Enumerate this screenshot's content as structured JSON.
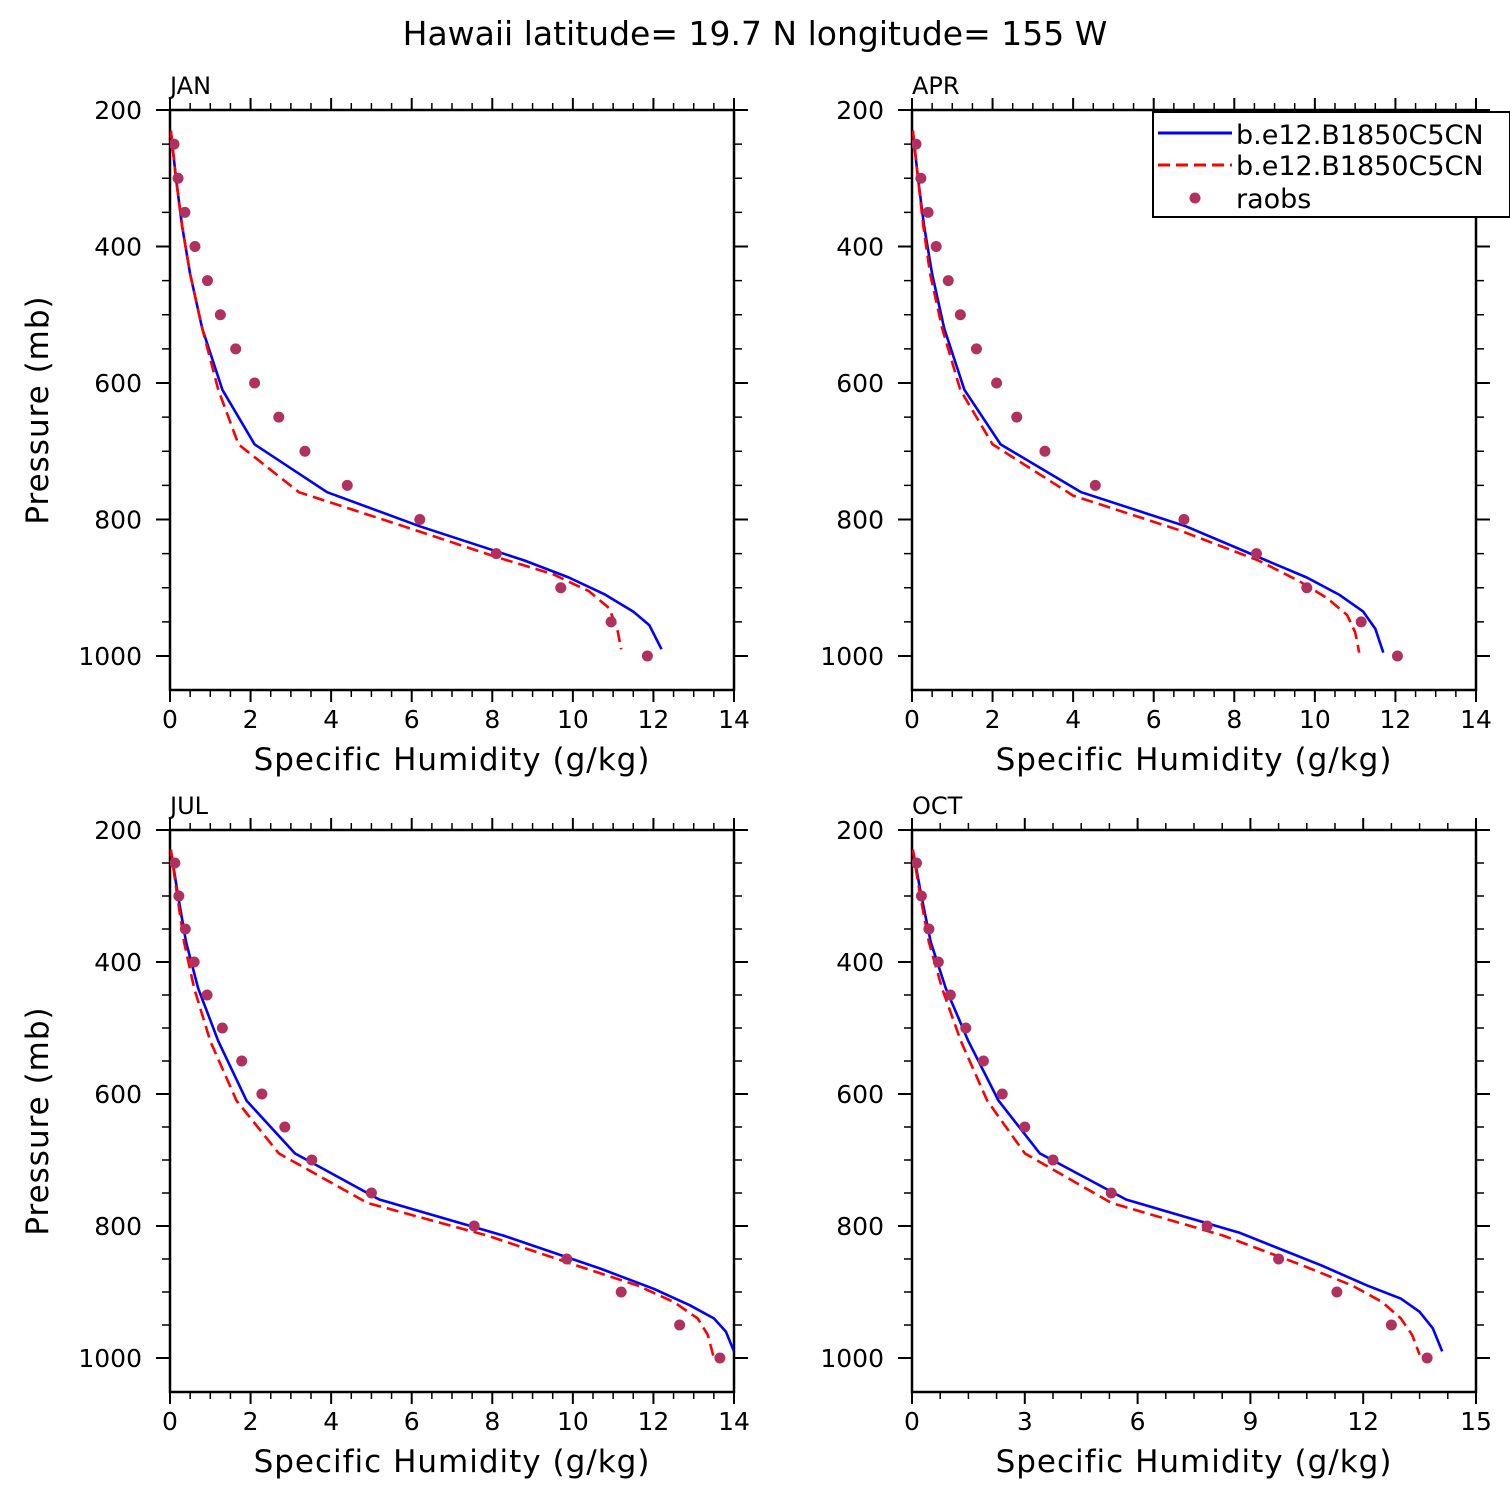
{
  "title": "Hawaii  latitude= 19.7 N longitude= 155 W",
  "legend": {
    "entries": [
      {
        "label": "b.e12.B1850C5CN",
        "color": "#0000ff",
        "style": "solid"
      },
      {
        "label": "b.e12.B1850C5CN",
        "color": "#ff0000",
        "style": "dashed"
      },
      {
        "label": "raobs",
        "color": "#b03060",
        "style": "dots"
      }
    ]
  },
  "colors": {
    "model_solid": "#0000ff",
    "model_dashed": "#ff0000",
    "raobs": "#b03060"
  },
  "chart_data": [
    {
      "type": "line",
      "panel": "JAN",
      "xlabel": "Specific Humidity (g/kg)",
      "ylabel": "Pressure (mb)",
      "xlim": [
        0,
        14
      ],
      "ylim": [
        1000,
        200
      ],
      "xticks": [
        0,
        2,
        4,
        6,
        8,
        10,
        12,
        14
      ],
      "yticks": [
        200,
        400,
        600,
        800,
        1000
      ],
      "series": [
        {
          "name": "b.e12.B1850C5CN",
          "x": [
            0.02,
            0.15,
            0.3,
            0.5,
            0.8,
            1.3,
            2.1,
            3.9,
            6.2,
            8.8,
            9.9,
            10.8,
            11.5,
            11.9,
            12.2
          ],
          "y": [
            230,
            300,
            370,
            440,
            520,
            610,
            690,
            760,
            810,
            860,
            885,
            910,
            935,
            955,
            990
          ]
        },
        {
          "name": "b.e12.B1850C5CN",
          "x": [
            0.02,
            0.15,
            0.3,
            0.5,
            0.8,
            1.2,
            1.7,
            3.2,
            5.8,
            8.1,
            9.5,
            10.4,
            10.9,
            11.1,
            11.2
          ],
          "y": [
            230,
            300,
            370,
            440,
            520,
            610,
            690,
            760,
            810,
            855,
            880,
            905,
            930,
            960,
            990
          ]
        },
        {
          "name": "raobs",
          "x": [
            0.1,
            0.2,
            0.37,
            0.62,
            0.93,
            1.25,
            1.63,
            2.1,
            2.7,
            3.35,
            4.4,
            6.2,
            8.1,
            9.7,
            10.95,
            11.85
          ],
          "y": [
            250,
            300,
            350,
            400,
            450,
            500,
            550,
            600,
            650,
            700,
            750,
            800,
            850,
            900,
            950,
            1000
          ]
        }
      ]
    },
    {
      "type": "line",
      "panel": "APR",
      "xlabel": "Specific Humidity (g/kg)",
      "ylabel": "",
      "xlim": [
        0,
        14
      ],
      "ylim": [
        1000,
        200
      ],
      "xticks": [
        0,
        2,
        4,
        6,
        8,
        10,
        12,
        14
      ],
      "yticks": [
        200,
        400,
        600,
        800,
        1000
      ],
      "series": [
        {
          "name": "b.e12.B1850C5CN",
          "x": [
            0.02,
            0.15,
            0.3,
            0.5,
            0.8,
            1.3,
            2.2,
            4.2,
            6.8,
            8.8,
            9.8,
            10.6,
            11.2,
            11.5,
            11.7
          ],
          "y": [
            230,
            300,
            370,
            440,
            520,
            610,
            690,
            760,
            810,
            860,
            885,
            910,
            935,
            960,
            995
          ]
        },
        {
          "name": "b.e12.B1850C5CN",
          "x": [
            0.02,
            0.15,
            0.28,
            0.45,
            0.75,
            1.2,
            2.0,
            4.0,
            6.6,
            8.6,
            9.6,
            10.3,
            10.8,
            11.0,
            11.1
          ],
          "y": [
            230,
            300,
            370,
            440,
            520,
            610,
            690,
            765,
            815,
            860,
            890,
            915,
            940,
            965,
            995
          ]
        },
        {
          "name": "raobs",
          "x": [
            0.1,
            0.22,
            0.4,
            0.6,
            0.9,
            1.2,
            1.6,
            2.1,
            2.6,
            3.3,
            4.55,
            6.75,
            8.55,
            9.8,
            11.15,
            12.05
          ],
          "y": [
            250,
            300,
            350,
            400,
            450,
            500,
            550,
            600,
            650,
            700,
            750,
            800,
            850,
            900,
            950,
            1000
          ]
        }
      ]
    },
    {
      "type": "line",
      "panel": "JUL",
      "xlabel": "Specific Humidity (g/kg)",
      "ylabel": "Pressure (mb)",
      "xlim": [
        0,
        14
      ],
      "ylim": [
        1000,
        200
      ],
      "xticks": [
        0,
        2,
        4,
        6,
        8,
        10,
        12,
        14
      ],
      "yticks": [
        200,
        400,
        600,
        800,
        1000
      ],
      "series": [
        {
          "name": "b.e12.B1850C5CN",
          "x": [
            0.02,
            0.2,
            0.4,
            0.7,
            1.2,
            1.9,
            3.1,
            5.2,
            8.3,
            10.7,
            12.0,
            12.9,
            13.5,
            13.8,
            14.0
          ],
          "y": [
            230,
            300,
            370,
            440,
            520,
            610,
            690,
            760,
            815,
            865,
            895,
            920,
            940,
            960,
            990
          ]
        },
        {
          "name": "b.e12.B1850C5CN",
          "x": [
            0.02,
            0.18,
            0.35,
            0.6,
            1.0,
            1.65,
            2.7,
            4.9,
            7.9,
            10.1,
            11.6,
            12.5,
            13.1,
            13.35,
            13.5
          ],
          "y": [
            230,
            300,
            370,
            440,
            520,
            610,
            690,
            765,
            815,
            860,
            890,
            915,
            940,
            965,
            1000
          ]
        },
        {
          "name": "raobs",
          "x": [
            0.12,
            0.22,
            0.38,
            0.6,
            0.92,
            1.3,
            1.78,
            2.28,
            2.85,
            3.52,
            5.0,
            7.55,
            9.85,
            11.2,
            12.65,
            13.65
          ],
          "y": [
            250,
            300,
            350,
            400,
            450,
            500,
            550,
            600,
            650,
            700,
            750,
            800,
            850,
            900,
            950,
            1000
          ]
        }
      ]
    },
    {
      "type": "line",
      "panel": "OCT",
      "xlabel": "Specific Humidity (g/kg)",
      "ylabel": "",
      "xlim": [
        0,
        15
      ],
      "ylim": [
        1000,
        200
      ],
      "xticks": [
        0,
        3,
        6,
        9,
        12,
        15
      ],
      "yticks": [
        200,
        400,
        600,
        800,
        1000
      ],
      "series": [
        {
          "name": "b.e12.B1850C5CN",
          "x": [
            0.02,
            0.25,
            0.5,
            0.9,
            1.5,
            2.3,
            3.4,
            5.7,
            8.7,
            10.9,
            12.1,
            13.0,
            13.5,
            13.85,
            14.1
          ],
          "y": [
            230,
            300,
            370,
            440,
            520,
            610,
            690,
            760,
            810,
            860,
            890,
            910,
            930,
            955,
            990
          ]
        },
        {
          "name": "b.e12.B1850C5CN",
          "x": [
            0.02,
            0.22,
            0.45,
            0.8,
            1.3,
            2.0,
            3.0,
            5.3,
            8.3,
            10.4,
            11.7,
            12.5,
            13.0,
            13.3,
            13.5
          ],
          "y": [
            230,
            300,
            370,
            440,
            520,
            610,
            690,
            765,
            815,
            860,
            890,
            915,
            940,
            965,
            995
          ]
        },
        {
          "name": "raobs",
          "x": [
            0.12,
            0.25,
            0.45,
            0.7,
            1.02,
            1.43,
            1.9,
            2.4,
            3.0,
            3.75,
            5.3,
            7.85,
            9.75,
            11.3,
            12.75,
            13.7
          ],
          "y": [
            250,
            300,
            350,
            400,
            450,
            500,
            550,
            600,
            650,
            700,
            750,
            800,
            850,
            900,
            950,
            1000
          ]
        }
      ]
    }
  ]
}
